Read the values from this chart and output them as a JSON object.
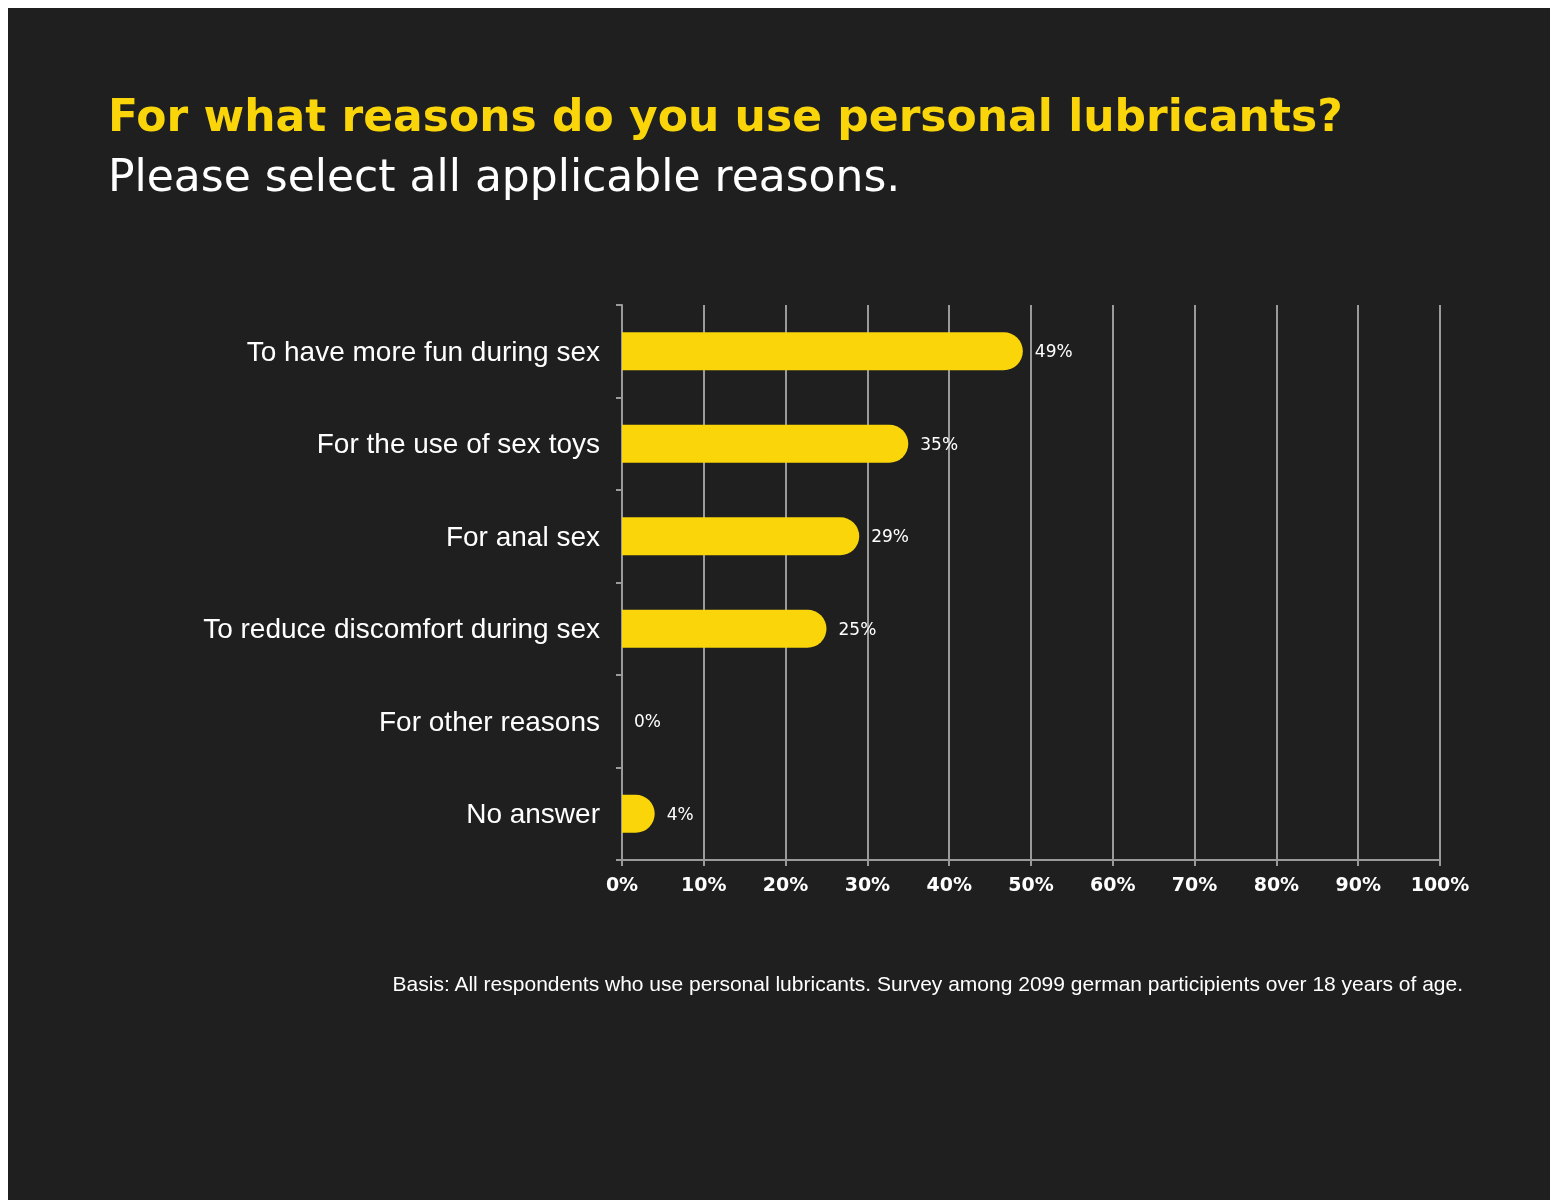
{
  "chart_data": {
    "type": "bar",
    "orientation": "horizontal",
    "title": "For what reasons do you use personal lubricants?",
    "subtitle": "Please select all applicable reasons.",
    "categories": [
      "To have more fun during sex",
      "For the use of sex toys",
      "For anal sex",
      "To reduce discomfort during sex",
      "For other reasons",
      "No answer"
    ],
    "values": [
      49,
      35,
      29,
      25,
      0,
      4
    ],
    "value_labels": [
      "49%",
      "35%",
      "29%",
      "25%",
      "0%",
      "4%"
    ],
    "color": "#f9d50a",
    "xlim": [
      0,
      100
    ],
    "xticks": [
      {
        "value": 0,
        "label": "0%"
      },
      {
        "value": 10,
        "label": "10%"
      },
      {
        "value": 20,
        "label": "20%"
      },
      {
        "value": 30,
        "label": "30%"
      },
      {
        "value": 40,
        "label": "40%"
      },
      {
        "value": 50,
        "label": "50%"
      },
      {
        "value": 60,
        "label": "60%"
      },
      {
        "value": 70,
        "label": "70%"
      },
      {
        "value": 80,
        "label": "80%"
      },
      {
        "value": 90,
        "label": "90%"
      },
      {
        "value": 100,
        "label": "100%"
      }
    ],
    "grid": "x",
    "annotations": [
      "Basis: All respondents who use personal lubricants. Survey among 2099 german participients over 18 years of age."
    ]
  }
}
